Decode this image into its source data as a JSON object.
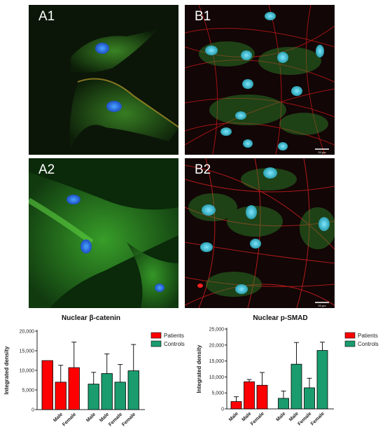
{
  "panels": [
    {
      "id": "A1",
      "label": "A1",
      "scale_bar": ""
    },
    {
      "id": "B1",
      "label": "B1",
      "scale_bar": "20 µm"
    },
    {
      "id": "A2",
      "label": "A2",
      "scale_bar": ""
    },
    {
      "id": "B2",
      "label": "B2",
      "scale_bar": "20 µm"
    }
  ],
  "colors": {
    "patients": "#ff0000",
    "controls": "#1a9c6e",
    "axis": "#222222"
  },
  "chart_data": [
    {
      "type": "bar",
      "title": "Nuclear β-catenin",
      "ylabel": "Integrated density",
      "ylim": [
        0,
        20000
      ],
      "yticks": [
        0,
        5000,
        10000,
        15000,
        20000
      ],
      "ytick_labels": [
        "0",
        "5,000",
        "10,000",
        "15,000",
        "20,000"
      ],
      "legend_position": "right",
      "series": [
        {
          "name": "Patients",
          "color": "#ff0000",
          "categories": [
            "",
            "Male",
            "Female"
          ],
          "values": [
            12500,
            7000,
            10700
          ],
          "errors": [
            0,
            4300,
            6500
          ]
        },
        {
          "name": "Controls",
          "color": "#1a9c6e",
          "categories": [
            "Male",
            "Male",
            "Female",
            "Female"
          ],
          "values": [
            6500,
            9200,
            7000,
            9900
          ],
          "errors": [
            3000,
            5000,
            4500,
            6700
          ]
        }
      ]
    },
    {
      "type": "bar",
      "title": "Nuclear p-SMAD",
      "ylabel": "Integrated density",
      "ylim": [
        0,
        25000
      ],
      "yticks": [
        0,
        5000,
        10000,
        15000,
        20000,
        25000
      ],
      "ytick_labels": [
        "0",
        "5,000",
        "10,000",
        "15,000",
        "20,000",
        "25,000"
      ],
      "legend_position": "right",
      "series": [
        {
          "name": "Patients",
          "color": "#ff0000",
          "categories": [
            "Male",
            "Male",
            "Female"
          ],
          "values": [
            2300,
            8500,
            7400
          ],
          "errors": [
            1500,
            700,
            4000
          ]
        },
        {
          "name": "Controls",
          "color": "#1a9c6e",
          "categories": [
            "Male",
            "Male",
            "Female",
            "Female"
          ],
          "values": [
            3300,
            14000,
            6600,
            18300
          ],
          "errors": [
            2300,
            6800,
            3000,
            2600
          ]
        }
      ]
    }
  ]
}
